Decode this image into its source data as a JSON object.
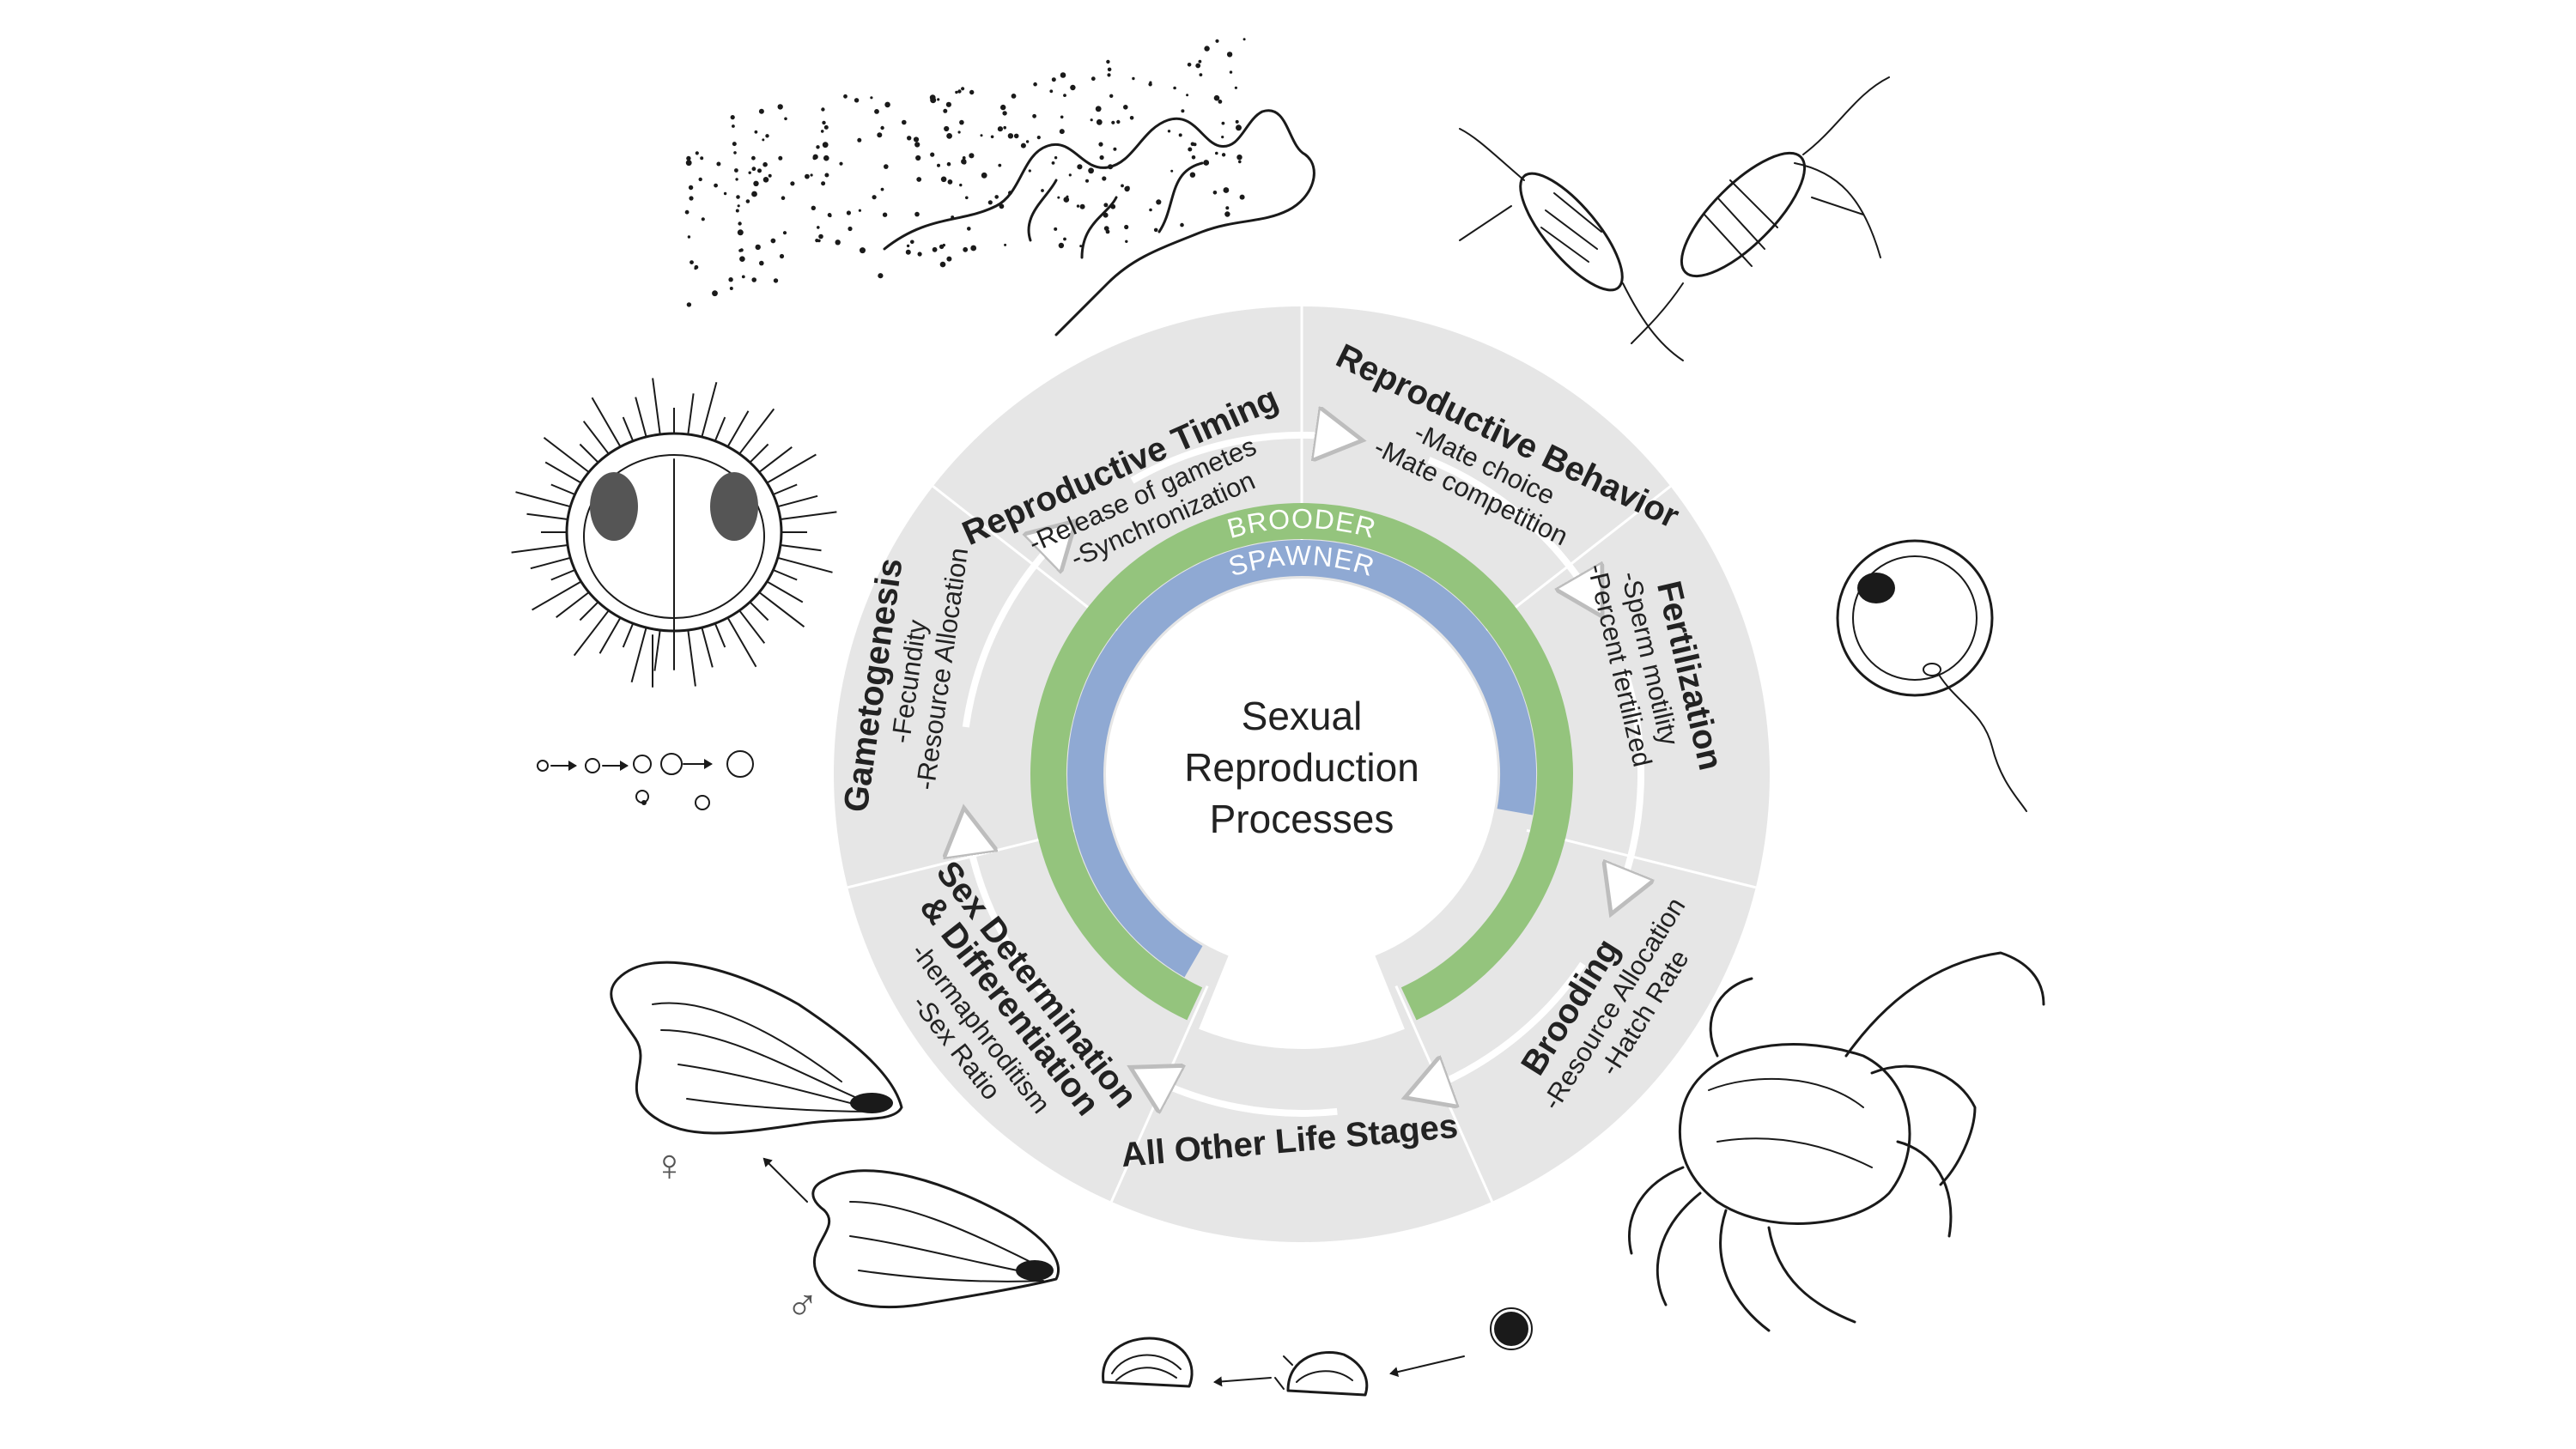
{
  "center": {
    "line1": "Sexual",
    "line2": "Reproduction",
    "line3": "Processes"
  },
  "rings": {
    "outer_label": "BROODER",
    "inner_label": "SPAWNER",
    "outer_color": "#94c47d",
    "inner_color": "#8fa9d3"
  },
  "wheel_color": "#e6e6e6",
  "segments": [
    {
      "title": "Reproductive Timing",
      "items": [
        "-Release of gametes",
        "-Synchronization"
      ]
    },
    {
      "title": "Reproductive Behavior",
      "items": [
        "-Mate choice",
        "-Mate competition"
      ]
    },
    {
      "title": "Fertilization",
      "items": [
        "-Sperm motility",
        "-Percent fertilized"
      ]
    },
    {
      "title": "Brooding",
      "items": [
        "-Resource Allocation",
        "-Hatch Rate"
      ]
    },
    {
      "title": "All Other Life Stages",
      "items": []
    },
    {
      "title": "Sex Determination",
      "title2": "& Differentiation",
      "items": [
        "-hermaphroditism",
        "-Sex Ratio"
      ]
    },
    {
      "title": "Gametogenesis",
      "items": [
        "-Fecundity",
        "-Resource Allocation"
      ]
    }
  ],
  "illustrations": [
    {
      "name": "spawning-coral",
      "icon": "coral-icon"
    },
    {
      "name": "copepods",
      "icon": "copepod-icon"
    },
    {
      "name": "egg-and-sperm",
      "icon": "egg-sperm-icon"
    },
    {
      "name": "crab",
      "icon": "crab-icon"
    },
    {
      "name": "oyster-larvae",
      "icon": "larvae-icon"
    },
    {
      "name": "oysters",
      "icon": "oyster-icon"
    },
    {
      "name": "urchin-oocytes",
      "icon": "urchin-icon"
    }
  ],
  "sex_symbols": {
    "female": "♀",
    "male": "♂"
  }
}
